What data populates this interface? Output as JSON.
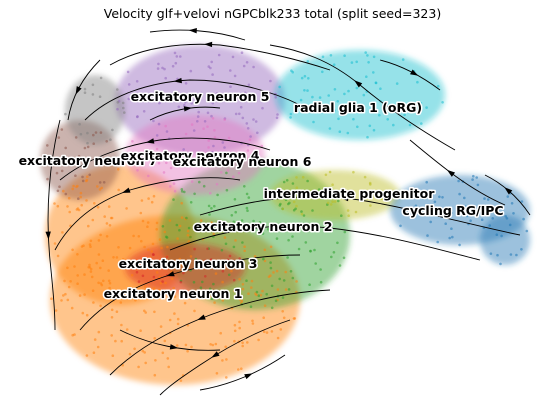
{
  "chart_data": {
    "type": "scatter",
    "subtype": "rna-velocity-stream-embedding",
    "title": "Velocity glf+velovi nGPCblk233 total (split seed=323)",
    "xlabel": "",
    "ylabel": "",
    "axes_visible": false,
    "grid": false,
    "legend": "on-data",
    "clusters": [
      {
        "name": "excitatory neuron 5",
        "color": "#9467bd"
      },
      {
        "name": "radial glia 1 (oRG)",
        "color": "#17becf"
      },
      {
        "name": "excitatory neuron 7",
        "color": "#8c564b"
      },
      {
        "name": "excitatory neuron 4",
        "color": "#e377c2"
      },
      {
        "name": "excitatory neuron 6",
        "color": "#7f7f7f"
      },
      {
        "name": "intermediate progenitor",
        "color": "#bcbd22"
      },
      {
        "name": "cycling RG/IPC",
        "color": "#1f77b4"
      },
      {
        "name": "excitatory neuron 2",
        "color": "#2ca02c"
      },
      {
        "name": "excitatory neuron 3",
        "color": "#d62728"
      },
      {
        "name": "excitatory neuron 1",
        "color": "#ff7f0e"
      }
    ],
    "stream_color": "#000000"
  }
}
